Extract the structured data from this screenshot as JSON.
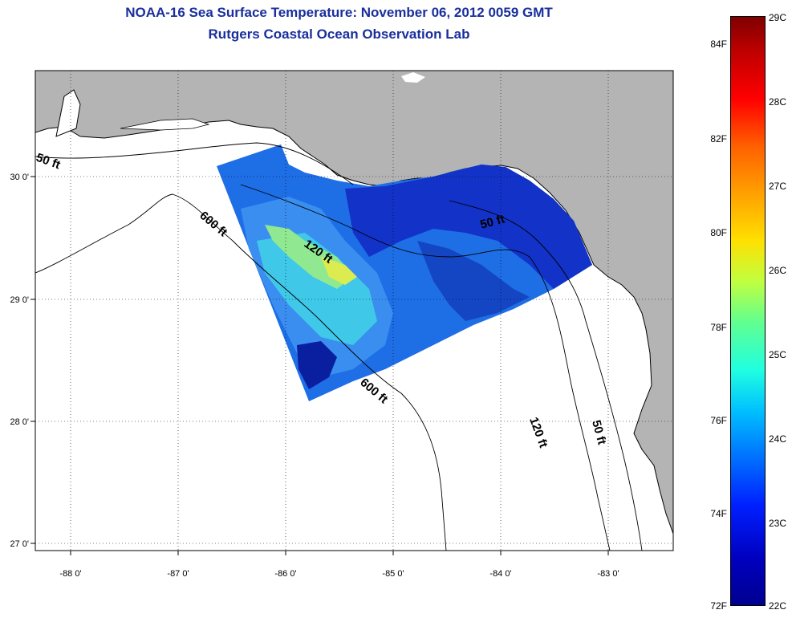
{
  "title": {
    "line1": "NOAA-16 Sea Surface Temperature:  November 06, 2012 0059 GMT",
    "line2": "Rutgers Coastal Ocean Observation Lab"
  },
  "map": {
    "x_ticks": [
      "-88 0'",
      "-87 0'",
      "-86 0'",
      "-85 0'",
      "-84 0'",
      "-83 0'"
    ],
    "y_ticks": [
      "30 0'",
      "29 0'",
      "28 0'",
      "27 0'"
    ],
    "contour_labels": [
      "50 ft",
      "600 ft",
      "120 ft",
      "50 ft",
      "600 ft",
      "120 ft",
      "50 ft"
    ],
    "land_color": "#b4b4b4",
    "water_color": "#ffffff"
  },
  "colorbar": {
    "fahrenheit_labels": [
      "84F",
      "82F",
      "80F",
      "78F",
      "76F",
      "74F",
      "72F"
    ],
    "celsius_labels": [
      "29C",
      "28C",
      "27C",
      "26C",
      "25C",
      "24C",
      "23C",
      "22C"
    ]
  }
}
